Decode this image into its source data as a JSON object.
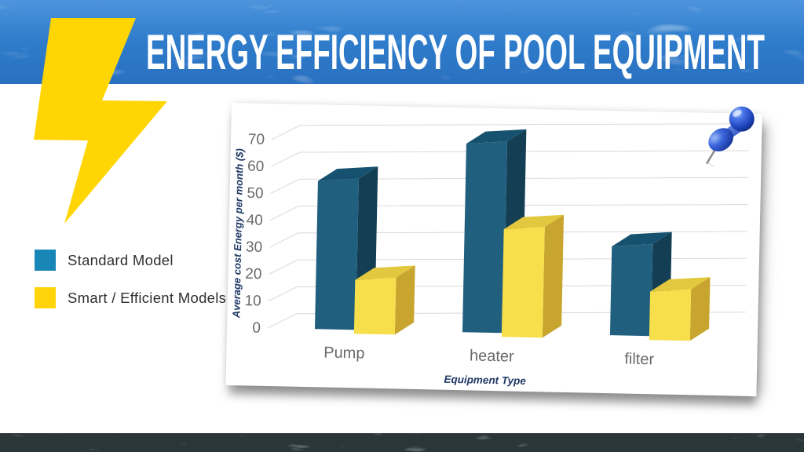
{
  "slide": {
    "title": "ENERGY EFFICIENCY OF POOL EQUIPMENT",
    "colors": {
      "header_blue": "#2E7CCB",
      "title_white": "#FFFFFF",
      "bolt_yellow": "#FFD504",
      "footer_dark": "#2B3638",
      "card_white": "#FFFFFF"
    }
  },
  "legend": {
    "items": [
      {
        "label": "Standard Model",
        "color": "#1887B8"
      },
      {
        "label": "Smart / Efficient Models",
        "color": "#FFD40A"
      }
    ]
  },
  "chart_data": {
    "type": "bar",
    "style": "3d-clustered",
    "categories": [
      "Pump",
      "heater",
      "filter"
    ],
    "series": [
      {
        "name": "Standard Model",
        "values": [
          55,
          70,
          33
        ],
        "front": "#215F7F",
        "top": "#16526F",
        "side": "#133E54"
      },
      {
        "name": "Smart / Efficient Models",
        "values": [
          20,
          40,
          18
        ],
        "front": "#F7DE4B",
        "top": "#E2C83E",
        "side": "#C8A52F"
      }
    ],
    "title": "",
    "xlabel": "Equipment Type",
    "ylabel": "Average cost Energy per month ($)",
    "ylim": [
      0,
      70
    ],
    "ytick_step": 10,
    "yticks": [
      0,
      10,
      20,
      30,
      40,
      50,
      60,
      70
    ],
    "grid": true,
    "grid_color": "#D9D9D9",
    "tick_color": "#6A6A6A",
    "axis_label_color": "#1F3864",
    "legend_position": "left"
  },
  "icons": {
    "pushpin": "pushpin-icon",
    "bolt": "lightning-bolt-icon"
  }
}
